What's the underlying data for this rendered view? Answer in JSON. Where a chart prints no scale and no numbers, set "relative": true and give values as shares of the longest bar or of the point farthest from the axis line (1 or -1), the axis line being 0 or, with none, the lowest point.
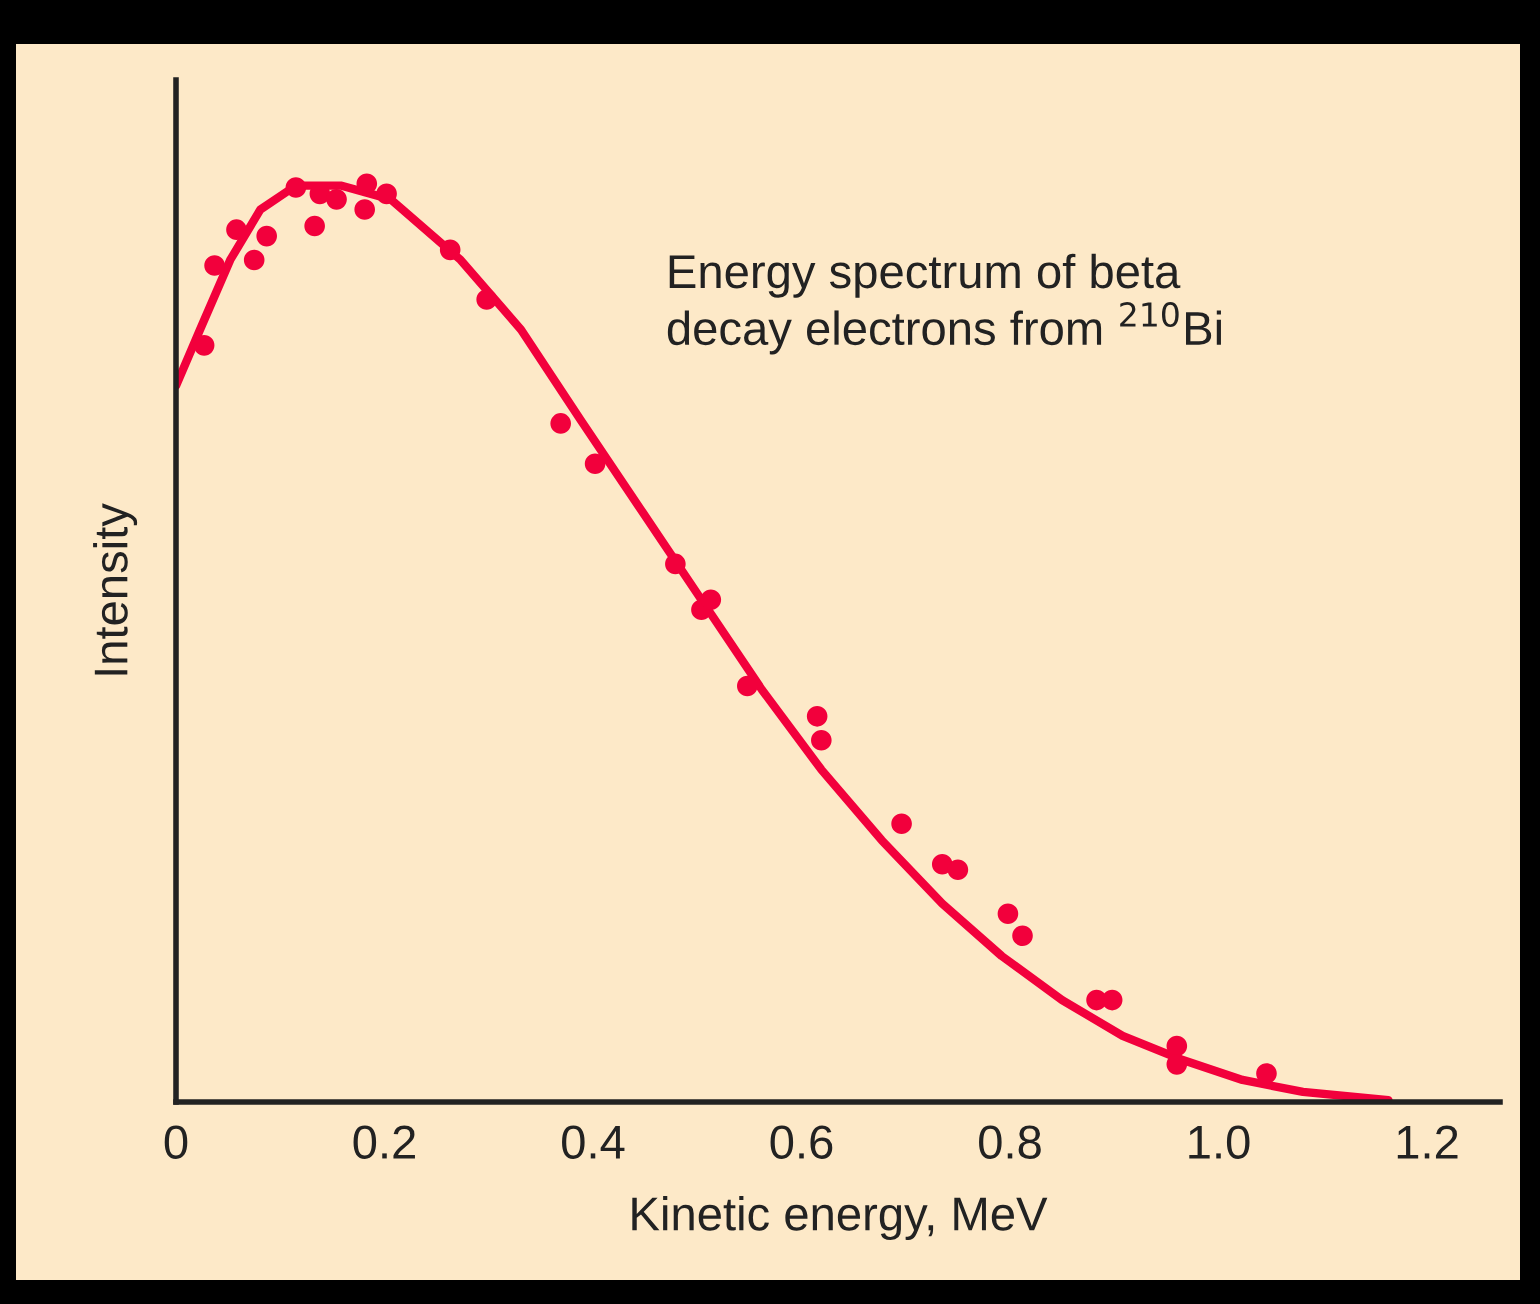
{
  "chart_data": {
    "type": "scatter",
    "relative": true,
    "xlabel": "Kinetic energy, MeV",
    "ylabel": "Intensity",
    "annotations": [
      "Energy spectrum of beta\ndecay electrons from $^{210}$Bi"
    ],
    "xlim": [
      0,
      1.27
    ],
    "xticks": [
      0,
      0.2,
      0.4,
      0.6,
      0.8,
      {
        "value": 1.0,
        "label": "1.0"
      },
      1.2
    ],
    "grid": false,
    "legend": false,
    "series": [
      {
        "color": "#f2003c",
        "marker": "circle",
        "x": [
          0.027,
          0.037,
          0.058,
          0.075,
          0.087,
          0.115,
          0.133,
          0.138,
          0.154,
          0.183,
          0.181,
          0.202,
          0.263,
          0.298,
          0.369,
          0.402,
          0.479,
          0.504,
          0.513,
          0.548,
          0.615,
          0.619,
          0.696,
          0.735,
          0.75,
          0.798,
          0.812,
          0.883,
          0.898,
          0.96,
          0.96,
          1.046
        ],
        "values": [
          0.824,
          0.911,
          0.95,
          0.917,
          0.943,
          0.996,
          0.954,
          0.989,
          0.983,
          1.0,
          0.972,
          0.989,
          0.928,
          0.874,
          0.739,
          0.695,
          0.586,
          0.536,
          0.547,
          0.453,
          0.42,
          0.394,
          0.303,
          0.259,
          0.253,
          0.205,
          0.181,
          0.111,
          0.111,
          0.061,
          0.041,
          0.031
        ]
      },
      {
        "type": "line",
        "color": "#f2003c",
        "line_style": "solid",
        "x": [
          0,
          0.023,
          0.052,
          0.081,
          0.115,
          0.158,
          0.206,
          0.273,
          0.331,
          0.388,
          0.446,
          0.504,
          0.562,
          0.619,
          0.677,
          0.735,
          0.792,
          0.85,
          0.908,
          0.965,
          1.023,
          1.081,
          1.163
        ],
        "values": [
          0.78,
          0.841,
          0.917,
          0.972,
          0.998,
          0.998,
          0.983,
          0.917,
          0.841,
          0.743,
          0.645,
          0.547,
          0.449,
          0.362,
          0.285,
          0.216,
          0.159,
          0.111,
          0.072,
          0.046,
          0.024,
          0.011,
          0.002
        ]
      }
    ]
  }
}
